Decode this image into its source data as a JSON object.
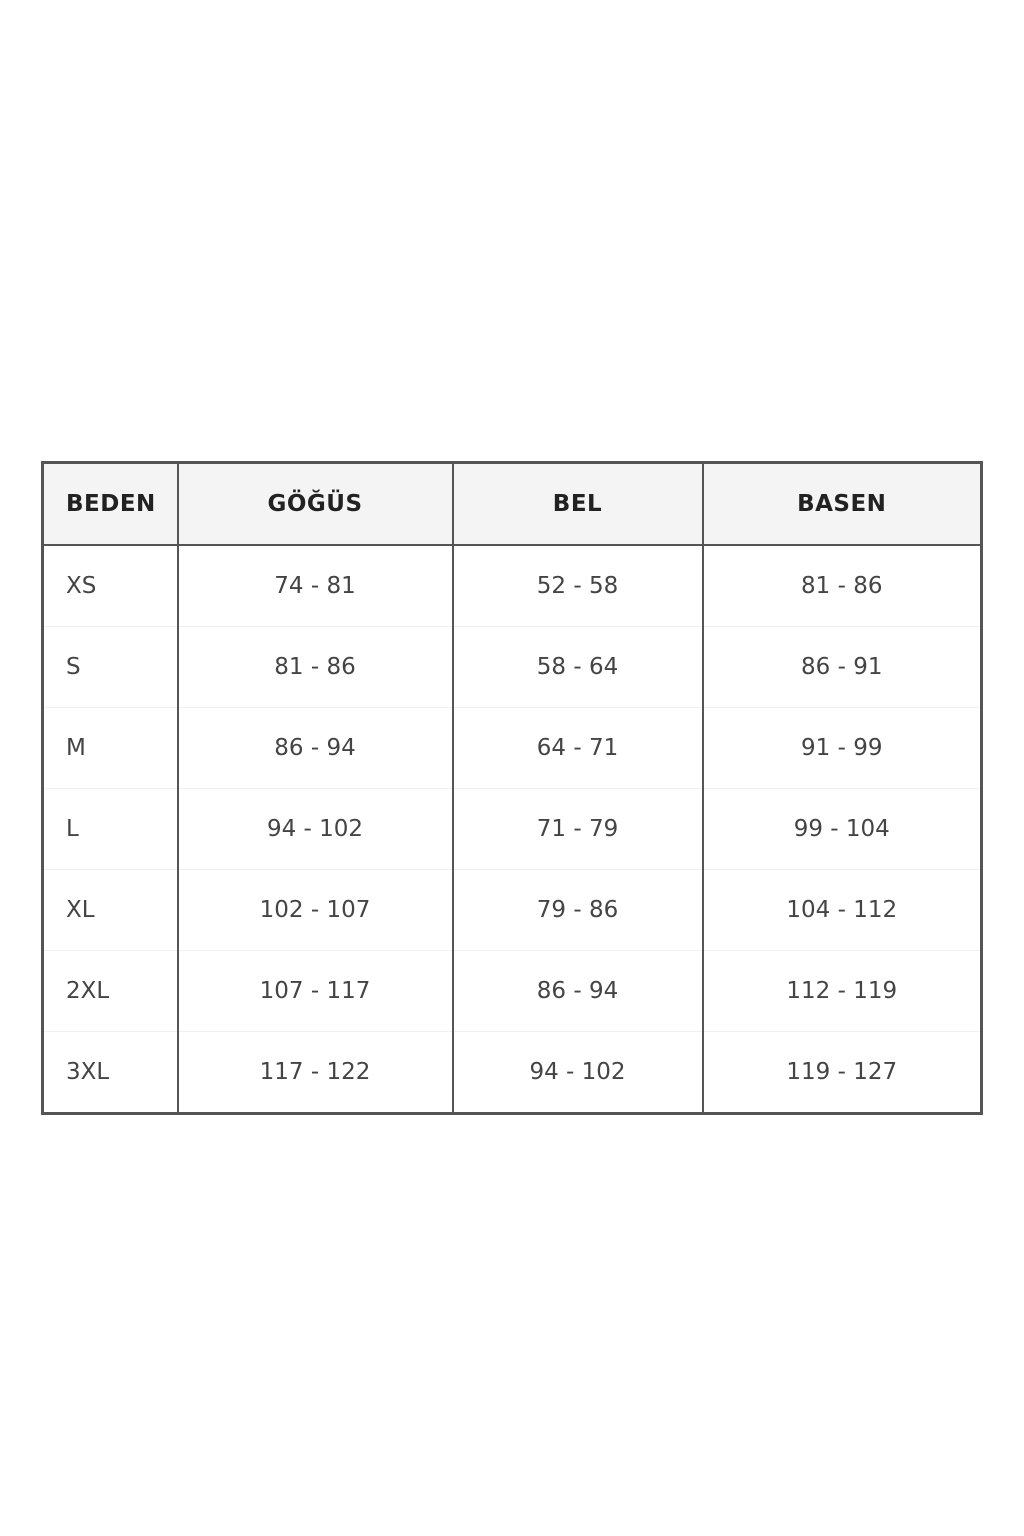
{
  "table": {
    "header": [
      "BEDEN",
      "GÖĞÜS",
      "BEL",
      "BASEN"
    ],
    "rows": [
      [
        "XS",
        "74 - 81",
        "52 - 58",
        "81 - 86"
      ],
      [
        "S",
        "81 - 86",
        "58 - 64",
        "86 - 91"
      ],
      [
        "M",
        "86 - 94",
        "64 - 71",
        "91 - 99"
      ],
      [
        "L",
        "94 - 102",
        "71 - 79",
        "99 - 104"
      ],
      [
        "XL",
        "102 - 107",
        "79 - 86",
        "104 - 112"
      ],
      [
        "2XL",
        "107 - 117",
        "86 - 94",
        "112 - 119"
      ],
      [
        "3XL",
        "117 - 122",
        "94 - 102",
        "119 - 127"
      ]
    ]
  }
}
